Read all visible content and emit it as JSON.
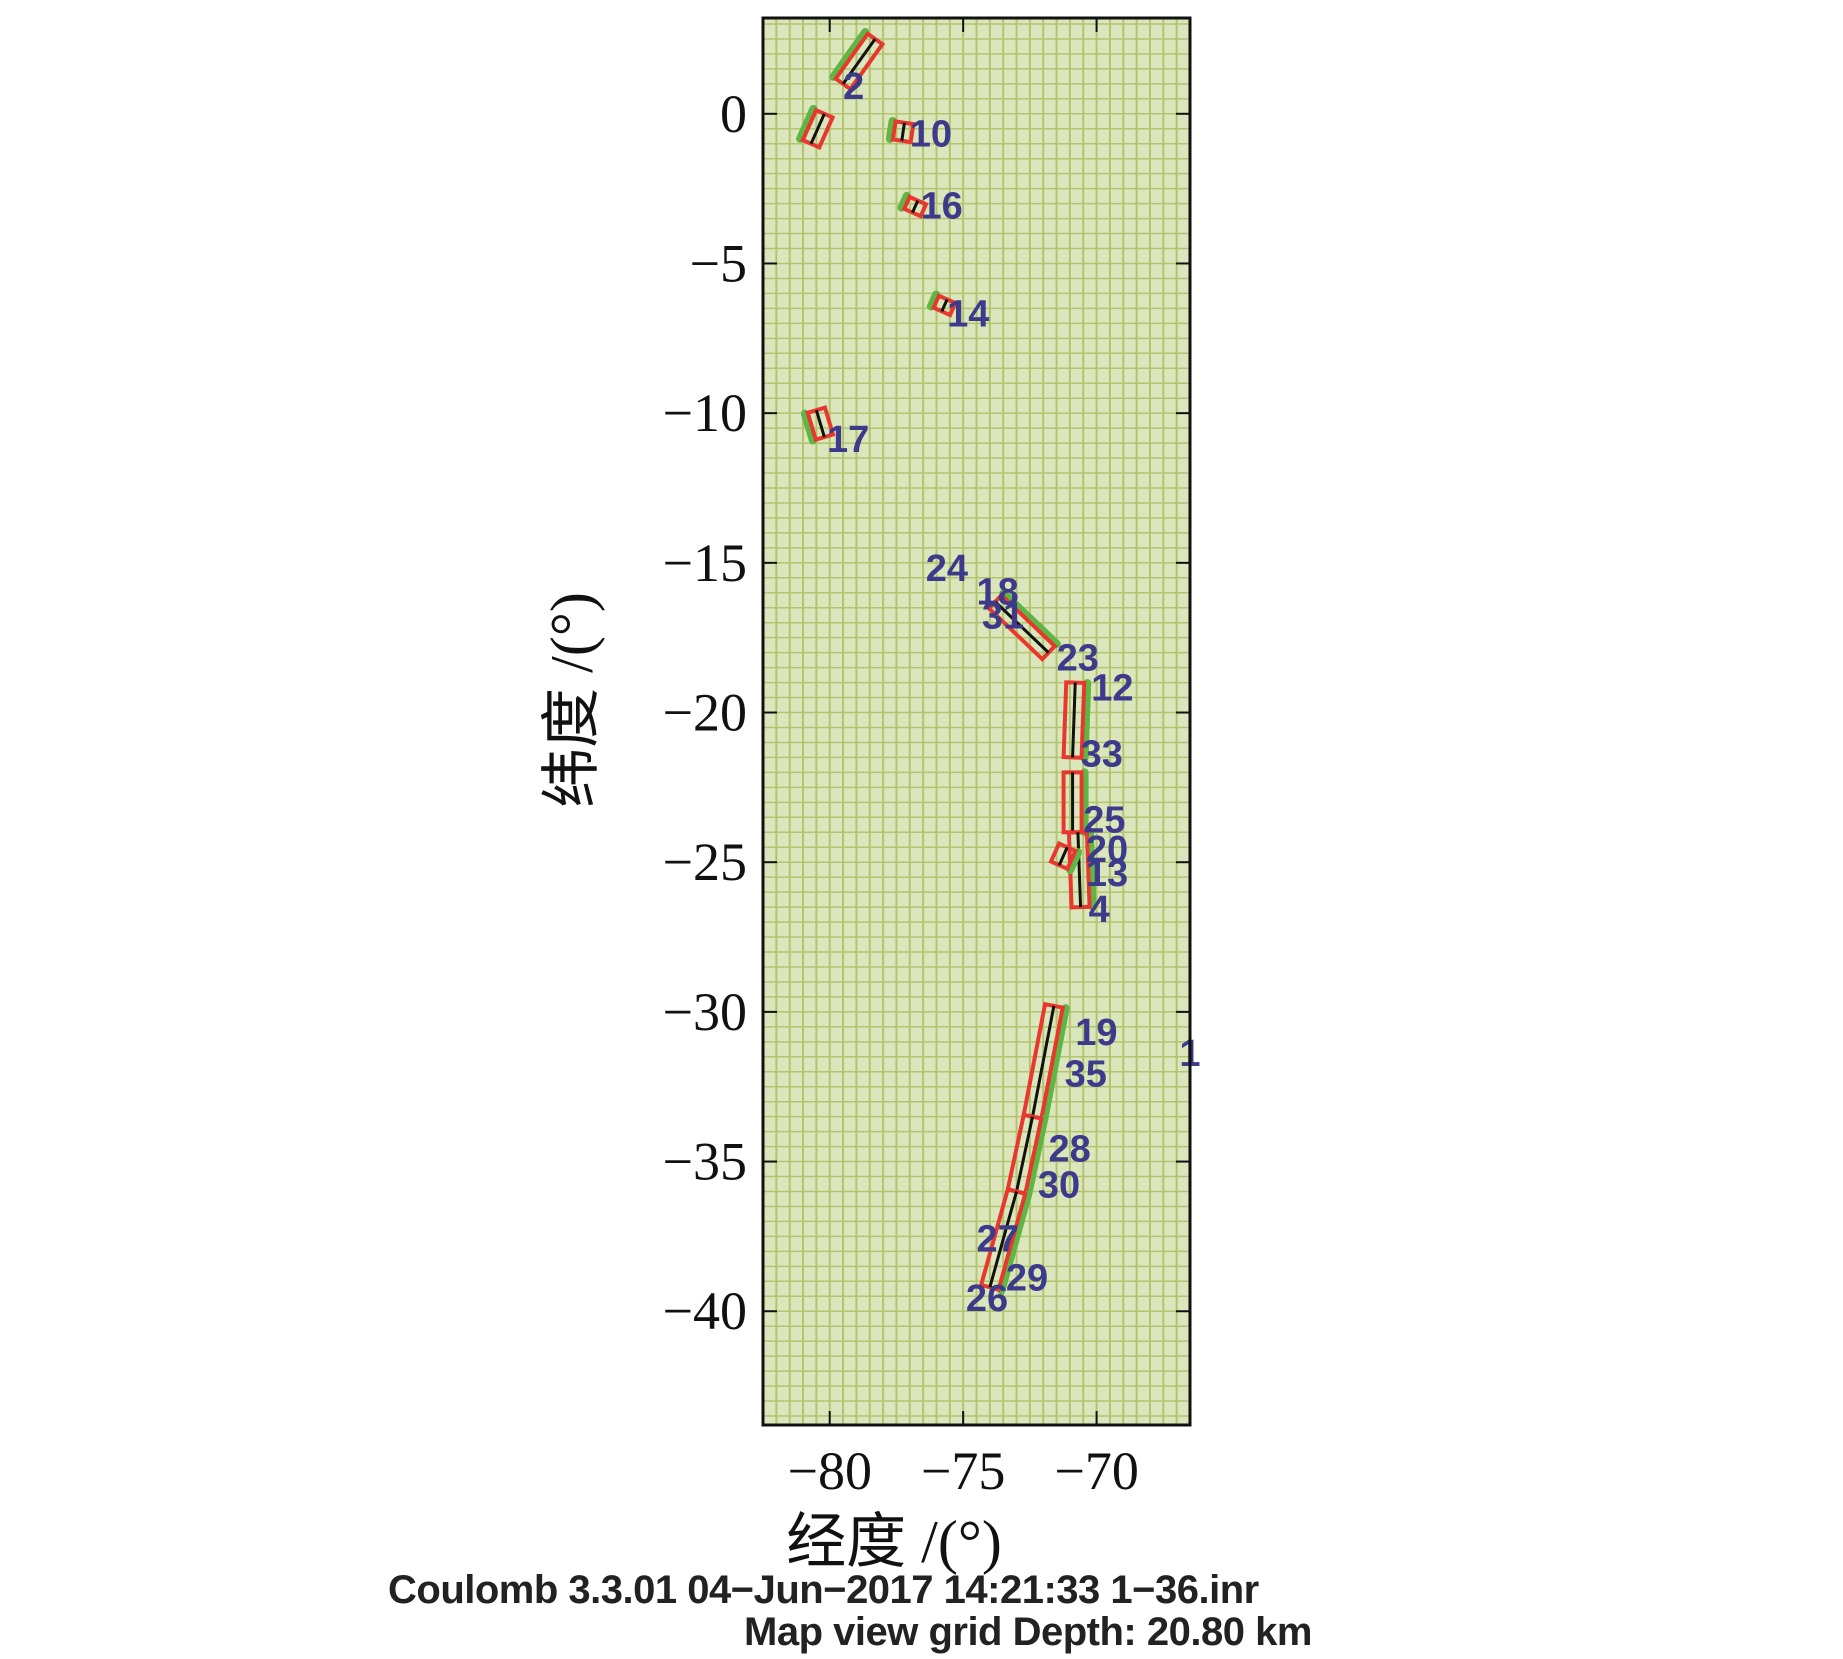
{
  "chart_data": {
    "type": "map",
    "xlabel": "经度 /(°)",
    "ylabel": "纬度 /(°)",
    "xlim": [
      -82.5,
      -66.5
    ],
    "ylim": [
      -43.8,
      3.2
    ],
    "x_ticks": [
      {
        "value": -80,
        "label": "−80"
      },
      {
        "value": -75,
        "label": "−75"
      },
      {
        "value": -70,
        "label": "−70"
      }
    ],
    "y_ticks": [
      {
        "value": 0,
        "label": "0"
      },
      {
        "value": -5,
        "label": "−5"
      },
      {
        "value": -10,
        "label": "−10"
      },
      {
        "value": -15,
        "label": "−15"
      },
      {
        "value": -20,
        "label": "−20"
      },
      {
        "value": -25,
        "label": "−25"
      },
      {
        "value": -30,
        "label": "−30"
      },
      {
        "value": -35,
        "label": "−35"
      },
      {
        "value": -40,
        "label": "−40"
      }
    ],
    "grid": true,
    "colors": {
      "background": "#dce6bd",
      "grid": "#b2c46f",
      "frame": "#111111",
      "fault_top": "#e8372f",
      "fault_surface": "#5fb645",
      "fault_trace": "#111111",
      "label": "#3d3a8c"
    },
    "fault_segments": [
      {
        "x1": -79.5,
        "y1": 1.0,
        "x2": -78.3,
        "y2": 2.5
      },
      {
        "x1": -80.7,
        "y1": -1.0,
        "x2": -80.2,
        "y2": 0.0
      },
      {
        "x1": -77.3,
        "y1": -0.9,
        "x2": -77.2,
        "y2": -0.3
      },
      {
        "x1": -76.9,
        "y1": -3.3,
        "x2": -76.7,
        "y2": -2.9
      },
      {
        "x1": -75.8,
        "y1": -6.6,
        "x2": -75.6,
        "y2": -6.2
      },
      {
        "x1": -80.2,
        "y1": -10.8,
        "x2": -80.5,
        "y2": -9.9
      },
      {
        "x1": -73.8,
        "y1": -16.3,
        "x2": -71.8,
        "y2": -18.0
      },
      {
        "x1": -70.8,
        "y1": -19.0,
        "x2": -70.9,
        "y2": -21.5
      },
      {
        "x1": -70.9,
        "y1": -22.0,
        "x2": -70.9,
        "y2": -24.0
      },
      {
        "x1": -70.7,
        "y1": -24.0,
        "x2": -70.6,
        "y2": -26.5
      },
      {
        "x1": -71.1,
        "y1": -24.5,
        "x2": -71.4,
        "y2": -25.1
      },
      {
        "x1": -71.6,
        "y1": -29.8,
        "x2": -72.4,
        "y2": -33.5
      },
      {
        "x1": -72.4,
        "y1": -33.5,
        "x2": -73.0,
        "y2": -36.0
      },
      {
        "x1": -73.0,
        "y1": -36.0,
        "x2": -74.0,
        "y2": -39.2
      }
    ],
    "fault_labels": [
      {
        "text": "1",
        "x": -66.9,
        "y": -31.8
      },
      {
        "text": "2",
        "x": -79.5,
        "y": 0.5
      },
      {
        "text": "4",
        "x": -70.3,
        "y": -27.0
      },
      {
        "text": "10",
        "x": -77.0,
        "y": -1.1
      },
      {
        "text": "12",
        "x": -70.2,
        "y": -19.6
      },
      {
        "text": "14",
        "x": -75.6,
        "y": -7.1
      },
      {
        "text": "16",
        "x": -76.6,
        "y": -3.5
      },
      {
        "text": "17",
        "x": -80.1,
        "y": -11.3
      },
      {
        "text": "19",
        "x": -70.8,
        "y": -31.1
      },
      {
        "text": "25",
        "x": -70.5,
        "y": -24.0
      },
      {
        "text": "26",
        "x": -74.9,
        "y": -40.0
      },
      {
        "text": "27",
        "x": -74.5,
        "y": -38.0
      },
      {
        "text": "28",
        "x": -71.8,
        "y": -35.0
      },
      {
        "text": "29",
        "x": -73.4,
        "y": -39.3
      },
      {
        "text": "30",
        "x": -72.2,
        "y": -36.2
      },
      {
        "text": "33",
        "x": -70.6,
        "y": -21.8
      },
      {
        "text": "35",
        "x": -71.2,
        "y": -32.5
      },
      {
        "text": "24",
        "x": -76.4,
        "y": -15.6
      },
      {
        "text": "18",
        "x": -74.5,
        "y": -16.4
      },
      {
        "text": "23",
        "x": -71.5,
        "y": -18.6
      },
      {
        "text": "20",
        "x": -70.4,
        "y": -25.0
      },
      {
        "text": "13",
        "x": -70.4,
        "y": -25.8
      },
      {
        "text": "31",
        "x": -74.3,
        "y": -17.2
      }
    ]
  },
  "footer": {
    "line1": "Coulomb 3.3.01 04−Jun−2017 14:21:33 1−36.inr",
    "line2": "Map view grid  Depth: 20.80 km"
  }
}
